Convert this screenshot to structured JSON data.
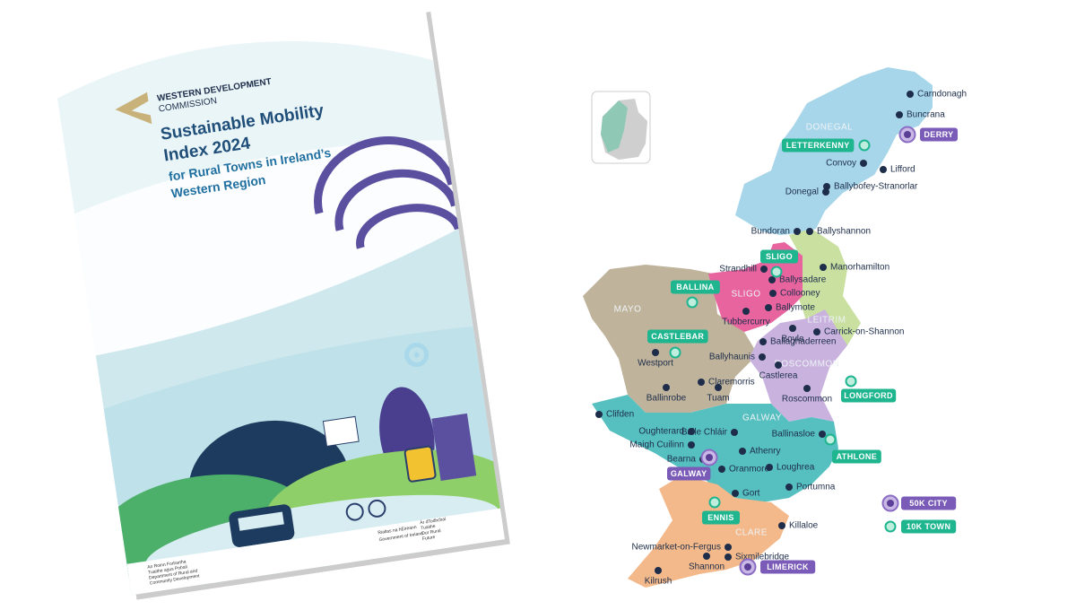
{
  "cover": {
    "logo_lines": [
      "WESTERN DEVELOPMENT",
      "COMMISSION"
    ],
    "title_lines": [
      "Sustainable Mobility",
      "Index 2024"
    ],
    "subtitle_lines": [
      "for Rural Towns in Ireland’s",
      "Western Region"
    ],
    "footer": {
      "department": [
        "An Roinn Forbartha",
        "Tuaithe agus Pobail",
        "Department of Rural and",
        "Community Development"
      ],
      "government": [
        "Rialtas na hÉireann",
        "Government of Ireland"
      ],
      "rural_future": [
        "Ár dTodhchaí",
        "Tuaithe",
        "Our Rural",
        "Future"
      ]
    }
  },
  "map": {
    "counties": [
      "DONEGAL",
      "SLIGO",
      "MAYO",
      "LEITRIM",
      "ROSCOMMON",
      "GALWAY",
      "CLARE"
    ],
    "towns": [
      "Carndonagh",
      "Buncrana",
      "Convoy",
      "Lifford",
      "Ballybofey-Stranorlar",
      "Donegal",
      "Bundoran",
      "Ballyshannon",
      "Manorhamilton",
      "Strandhill",
      "Ballysadare",
      "Collooney",
      "Ballymote",
      "Tubbercurry",
      "Boyle",
      "Carrick-on-Shannon",
      "Ballaghaderreen",
      "Ballyhaunis",
      "Castlerea",
      "Westport",
      "Claremorris",
      "Roscommon",
      "Ballinrobe",
      "Tuam",
      "Clifden",
      "Oughterard",
      "Baile Chláir",
      "Ballinasloe",
      "Maigh Cuilinn",
      "Athenry",
      "Bearna",
      "Oranmore",
      "Loughrea",
      "Gort",
      "Portumna",
      "Killaloe",
      "Newmarket-on-Fergus",
      "Sixmilebridge",
      "Shannon",
      "Kilrush"
    ],
    "towns_10k": [
      "LETTERKENNY",
      "SLIGO",
      "BALLINA",
      "CASTLEBAR",
      "LONGFORD",
      "ATHLONE",
      "ENNIS"
    ],
    "cities_50k": [
      "DERRY",
      "GALWAY",
      "LIMERICK"
    ],
    "legend": [
      "50K CITY",
      "10K TOWN"
    ]
  }
}
